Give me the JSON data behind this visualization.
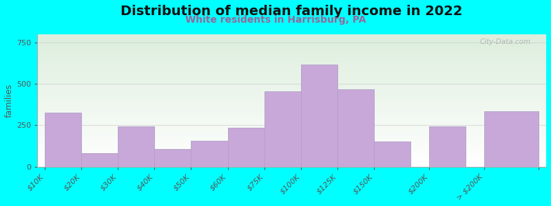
{
  "title": "Distribution of median family income in 2022",
  "subtitle": "White residents in Harrisburg, PA",
  "ylabel": "families",
  "background_color": "#00FFFF",
  "bar_color": "#C8A8D8",
  "bar_edge_color": "#b0a0c8",
  "watermark": "City-Data.com",
  "title_fontsize": 14,
  "subtitle_fontsize": 10,
  "ylabel_fontsize": 9,
  "tick_fontsize": 8,
  "values": [
    325,
    80,
    245,
    105,
    155,
    235,
    455,
    615,
    465,
    150,
    245,
    335
  ],
  "bin_edges": [
    0,
    1,
    2,
    3,
    4,
    5,
    6,
    7,
    8,
    9,
    10,
    11,
    12
  ],
  "bar_lefts": [
    0.0,
    1.0,
    2.0,
    3.0,
    4.0,
    5.0,
    6.0,
    7.0,
    8.0,
    9.0,
    10.5,
    12.0
  ],
  "bar_widths": [
    1.0,
    1.0,
    1.0,
    1.0,
    1.0,
    1.0,
    1.0,
    1.0,
    1.0,
    1.0,
    1.0,
    1.5
  ],
  "xtick_positions": [
    0.0,
    1.0,
    2.0,
    3.0,
    4.0,
    5.0,
    6.0,
    7.0,
    8.0,
    9.0,
    10.5,
    12.0,
    13.5
  ],
  "xtick_labels": [
    "$10K",
    "$20K",
    "$30K",
    "$40K",
    "$50K",
    "$60K",
    "$75K",
    "$100K",
    "$125K",
    "$150K",
    "$200K",
    "> $200K",
    ""
  ],
  "ylim": [
    0,
    800
  ],
  "yticks": [
    0,
    250,
    500,
    750
  ]
}
